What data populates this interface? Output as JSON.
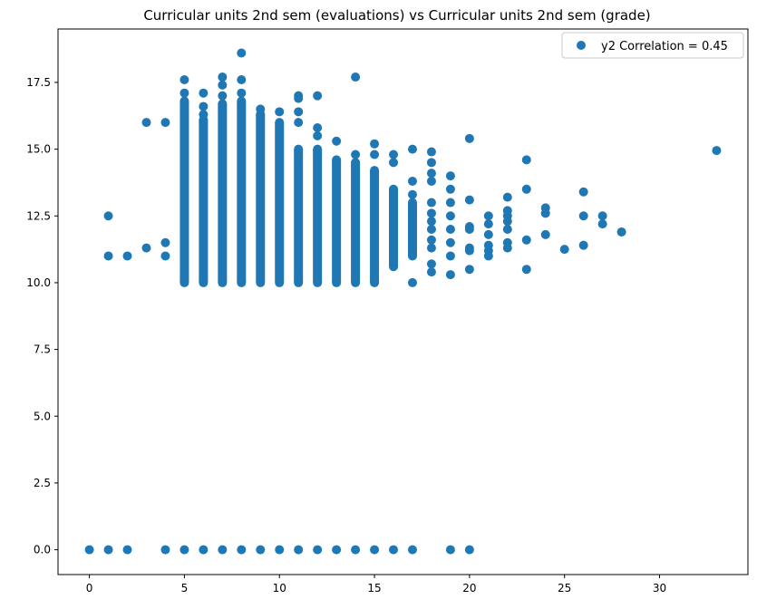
{
  "chart_data": {
    "type": "scatter",
    "title": "Curricular units 2nd sem (evaluations) vs Curricular units 2nd sem (grade)",
    "xlabel": "",
    "ylabel": "",
    "xlim": [
      -1.65,
      34.65
    ],
    "ylim": [
      -0.93,
      19.5
    ],
    "xticks": [
      0,
      5,
      10,
      15,
      20,
      25,
      30
    ],
    "yticks": [
      0.0,
      2.5,
      5.0,
      7.5,
      10.0,
      12.5,
      15.0,
      17.5
    ],
    "grid": false,
    "legend": {
      "position": "top-right",
      "entries": [
        "y2 Correlation = 0.45"
      ]
    },
    "marker_color": "#1f77b4",
    "series": [
      {
        "name": "y2 Correlation = 0.45",
        "color": "#1f77b4",
        "dense_columns": [
          {
            "x": 5,
            "ymin": 10.0,
            "ymax": 16.8
          },
          {
            "x": 6,
            "ymin": 10.0,
            "ymax": 16.1
          },
          {
            "x": 7,
            "ymin": 10.0,
            "ymax": 16.7
          },
          {
            "x": 8,
            "ymin": 10.0,
            "ymax": 16.8
          },
          {
            "x": 9,
            "ymin": 10.0,
            "ymax": 16.3
          },
          {
            "x": 10,
            "ymin": 10.0,
            "ymax": 16.0
          },
          {
            "x": 11,
            "ymin": 10.0,
            "ymax": 15.0
          },
          {
            "x": 12,
            "ymin": 10.0,
            "ymax": 15.0
          },
          {
            "x": 13,
            "ymin": 10.0,
            "ymax": 14.6
          },
          {
            "x": 14,
            "ymin": 10.0,
            "ymax": 14.5
          },
          {
            "x": 15,
            "ymin": 10.0,
            "ymax": 14.2
          },
          {
            "x": 16,
            "ymin": 10.6,
            "ymax": 13.5
          },
          {
            "x": 17,
            "ymin": 11.0,
            "ymax": 13.0
          }
        ],
        "points": [
          [
            0,
            0
          ],
          [
            1,
            0
          ],
          [
            2,
            0
          ],
          [
            4,
            0
          ],
          [
            5,
            0
          ],
          [
            6,
            0
          ],
          [
            7,
            0
          ],
          [
            8,
            0
          ],
          [
            9,
            0
          ],
          [
            10,
            0
          ],
          [
            11,
            0
          ],
          [
            12,
            0
          ],
          [
            13,
            0
          ],
          [
            14,
            0
          ],
          [
            15,
            0
          ],
          [
            16,
            0
          ],
          [
            17,
            0
          ],
          [
            19,
            0
          ],
          [
            20,
            0
          ],
          [
            1,
            12.5
          ],
          [
            1,
            11.0
          ],
          [
            2,
            11.0
          ],
          [
            3,
            16.0
          ],
          [
            3,
            11.3
          ],
          [
            4,
            16.0
          ],
          [
            4,
            11.5
          ],
          [
            4,
            11.0
          ],
          [
            5,
            17.6
          ],
          [
            5,
            17.1
          ],
          [
            6,
            17.1
          ],
          [
            6,
            16.6
          ],
          [
            6,
            16.3
          ],
          [
            7,
            17.7
          ],
          [
            7,
            17.4
          ],
          [
            7,
            17.0
          ],
          [
            8,
            18.6
          ],
          [
            8,
            17.6
          ],
          [
            8,
            17.1
          ],
          [
            9,
            16.5
          ],
          [
            10,
            16.4
          ],
          [
            11,
            17.0
          ],
          [
            11,
            16.9
          ],
          [
            11,
            16.4
          ],
          [
            11,
            16.0
          ],
          [
            12,
            17.0
          ],
          [
            12,
            15.8
          ],
          [
            12,
            15.5
          ],
          [
            13,
            15.3
          ],
          [
            14,
            17.7
          ],
          [
            14,
            14.8
          ],
          [
            15,
            15.2
          ],
          [
            15,
            14.8
          ],
          [
            16,
            14.8
          ],
          [
            16,
            14.5
          ],
          [
            17,
            15.0
          ],
          [
            17,
            13.8
          ],
          [
            17,
            13.3
          ],
          [
            17,
            12.5
          ],
          [
            17,
            10.0
          ],
          [
            18,
            14.9
          ],
          [
            18,
            14.5
          ],
          [
            18,
            14.1
          ],
          [
            18,
            13.8
          ],
          [
            18,
            13.0
          ],
          [
            18,
            12.6
          ],
          [
            18,
            12.3
          ],
          [
            18,
            12.0
          ],
          [
            18,
            11.6
          ],
          [
            18,
            11.3
          ],
          [
            18,
            10.7
          ],
          [
            18,
            10.4
          ],
          [
            19,
            14.0
          ],
          [
            19,
            13.5
          ],
          [
            19,
            13.0
          ],
          [
            19,
            12.5
          ],
          [
            19,
            12.0
          ],
          [
            19,
            11.5
          ],
          [
            19,
            11.0
          ],
          [
            19,
            10.3
          ],
          [
            20,
            15.4
          ],
          [
            20,
            13.1
          ],
          [
            20,
            12.1
          ],
          [
            20,
            12.0
          ],
          [
            20,
            11.3
          ],
          [
            20,
            11.2
          ],
          [
            20,
            10.5
          ],
          [
            21,
            12.5
          ],
          [
            21,
            12.2
          ],
          [
            21,
            11.8
          ],
          [
            21,
            11.4
          ],
          [
            21,
            11.2
          ],
          [
            21,
            11.0
          ],
          [
            22,
            13.2
          ],
          [
            22,
            12.7
          ],
          [
            22,
            12.5
          ],
          [
            22,
            12.3
          ],
          [
            22,
            12.0
          ],
          [
            22,
            11.5
          ],
          [
            22,
            11.3
          ],
          [
            23,
            14.6
          ],
          [
            23,
            13.5
          ],
          [
            23,
            11.6
          ],
          [
            23,
            10.5
          ],
          [
            24,
            12.8
          ],
          [
            24,
            12.6
          ],
          [
            24,
            11.8
          ],
          [
            25,
            11.25
          ],
          [
            26,
            13.4
          ],
          [
            26,
            12.5
          ],
          [
            26,
            11.4
          ],
          [
            27,
            12.5
          ],
          [
            27,
            12.2
          ],
          [
            28,
            11.9
          ],
          [
            33,
            14.95
          ]
        ]
      }
    ]
  }
}
